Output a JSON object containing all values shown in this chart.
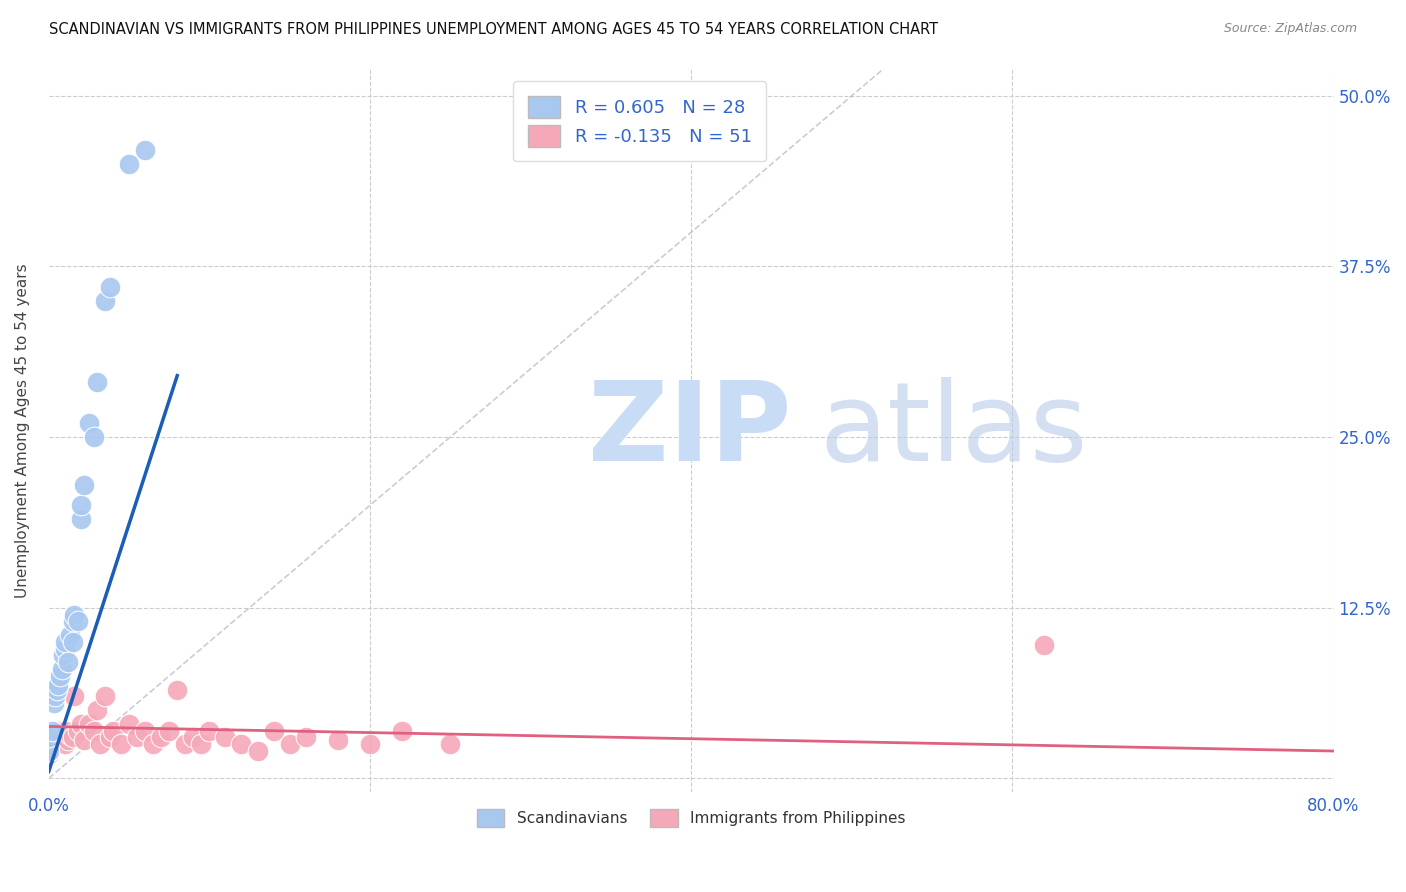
{
  "title": "SCANDINAVIAN VS IMMIGRANTS FROM PHILIPPINES UNEMPLOYMENT AMONG AGES 45 TO 54 YEARS CORRELATION CHART",
  "source": "Source: ZipAtlas.com",
  "ylabel": "Unemployment Among Ages 45 to 54 years",
  "xlim": [
    0.0,
    0.8
  ],
  "ylim": [
    -0.01,
    0.52
  ],
  "xticks": [
    0.0,
    0.2,
    0.4,
    0.6,
    0.8
  ],
  "xticklabels": [
    "0.0%",
    "",
    "",
    "",
    "80.0%"
  ],
  "ytick_positions": [
    0.0,
    0.125,
    0.25,
    0.375,
    0.5
  ],
  "right_yticklabels": [
    "",
    "12.5%",
    "25.0%",
    "37.5%",
    "50.0%"
  ],
  "background_color": "#ffffff",
  "grid_color": "#cccccc",
  "scand_color": "#a8c8f0",
  "phil_color": "#f5a8b8",
  "scand_line_color": "#1a5eb8",
  "phil_line_color": "#e06080",
  "legend_r1_r": "R = ",
  "legend_r1_val": "0.605",
  "legend_r1_n": "  N = ",
  "legend_r1_nval": "28",
  "legend_r2_r": "R = ",
  "legend_r2_val": "-0.135",
  "legend_r2_n": "  N = ",
  "legend_r2_nval": "51",
  "scand_points_x": [
    0.0,
    0.0,
    0.002,
    0.003,
    0.004,
    0.005,
    0.006,
    0.007,
    0.008,
    0.009,
    0.01,
    0.01,
    0.012,
    0.013,
    0.015,
    0.015,
    0.016,
    0.018,
    0.02,
    0.02,
    0.022,
    0.025,
    0.028,
    0.03,
    0.035,
    0.038,
    0.05,
    0.06
  ],
  "scand_points_y": [
    0.02,
    0.03,
    0.035,
    0.055,
    0.06,
    0.065,
    0.068,
    0.075,
    0.08,
    0.09,
    0.095,
    0.1,
    0.085,
    0.105,
    0.1,
    0.115,
    0.12,
    0.115,
    0.19,
    0.2,
    0.215,
    0.26,
    0.25,
    0.29,
    0.35,
    0.36,
    0.45,
    0.46
  ],
  "phil_points_x": [
    0.0,
    0.0,
    0.0,
    0.001,
    0.002,
    0.003,
    0.004,
    0.005,
    0.006,
    0.007,
    0.008,
    0.009,
    0.01,
    0.01,
    0.012,
    0.013,
    0.015,
    0.016,
    0.018,
    0.02,
    0.022,
    0.025,
    0.028,
    0.03,
    0.032,
    0.035,
    0.038,
    0.04,
    0.045,
    0.05,
    0.055,
    0.06,
    0.065,
    0.07,
    0.075,
    0.08,
    0.085,
    0.09,
    0.095,
    0.1,
    0.11,
    0.12,
    0.13,
    0.14,
    0.15,
    0.16,
    0.18,
    0.2,
    0.22,
    0.25,
    0.62
  ],
  "phil_points_y": [
    0.018,
    0.025,
    0.03,
    0.02,
    0.025,
    0.03,
    0.028,
    0.032,
    0.03,
    0.035,
    0.028,
    0.03,
    0.025,
    0.035,
    0.028,
    0.032,
    0.03,
    0.06,
    0.035,
    0.04,
    0.028,
    0.04,
    0.035,
    0.05,
    0.025,
    0.06,
    0.03,
    0.035,
    0.025,
    0.04,
    0.03,
    0.035,
    0.025,
    0.03,
    0.035,
    0.065,
    0.025,
    0.03,
    0.025,
    0.035,
    0.03,
    0.025,
    0.02,
    0.035,
    0.025,
    0.03,
    0.028,
    0.025,
    0.035,
    0.025,
    0.098
  ],
  "scand_line_x": [
    0.0,
    0.08
  ],
  "scand_line_y": [
    0.005,
    0.295
  ],
  "phil_line_x": [
    0.0,
    0.8
  ],
  "phil_line_y": [
    0.038,
    0.02
  ],
  "diag_line_x": [
    0.0,
    0.52
  ],
  "diag_line_y": [
    0.0,
    0.52
  ]
}
